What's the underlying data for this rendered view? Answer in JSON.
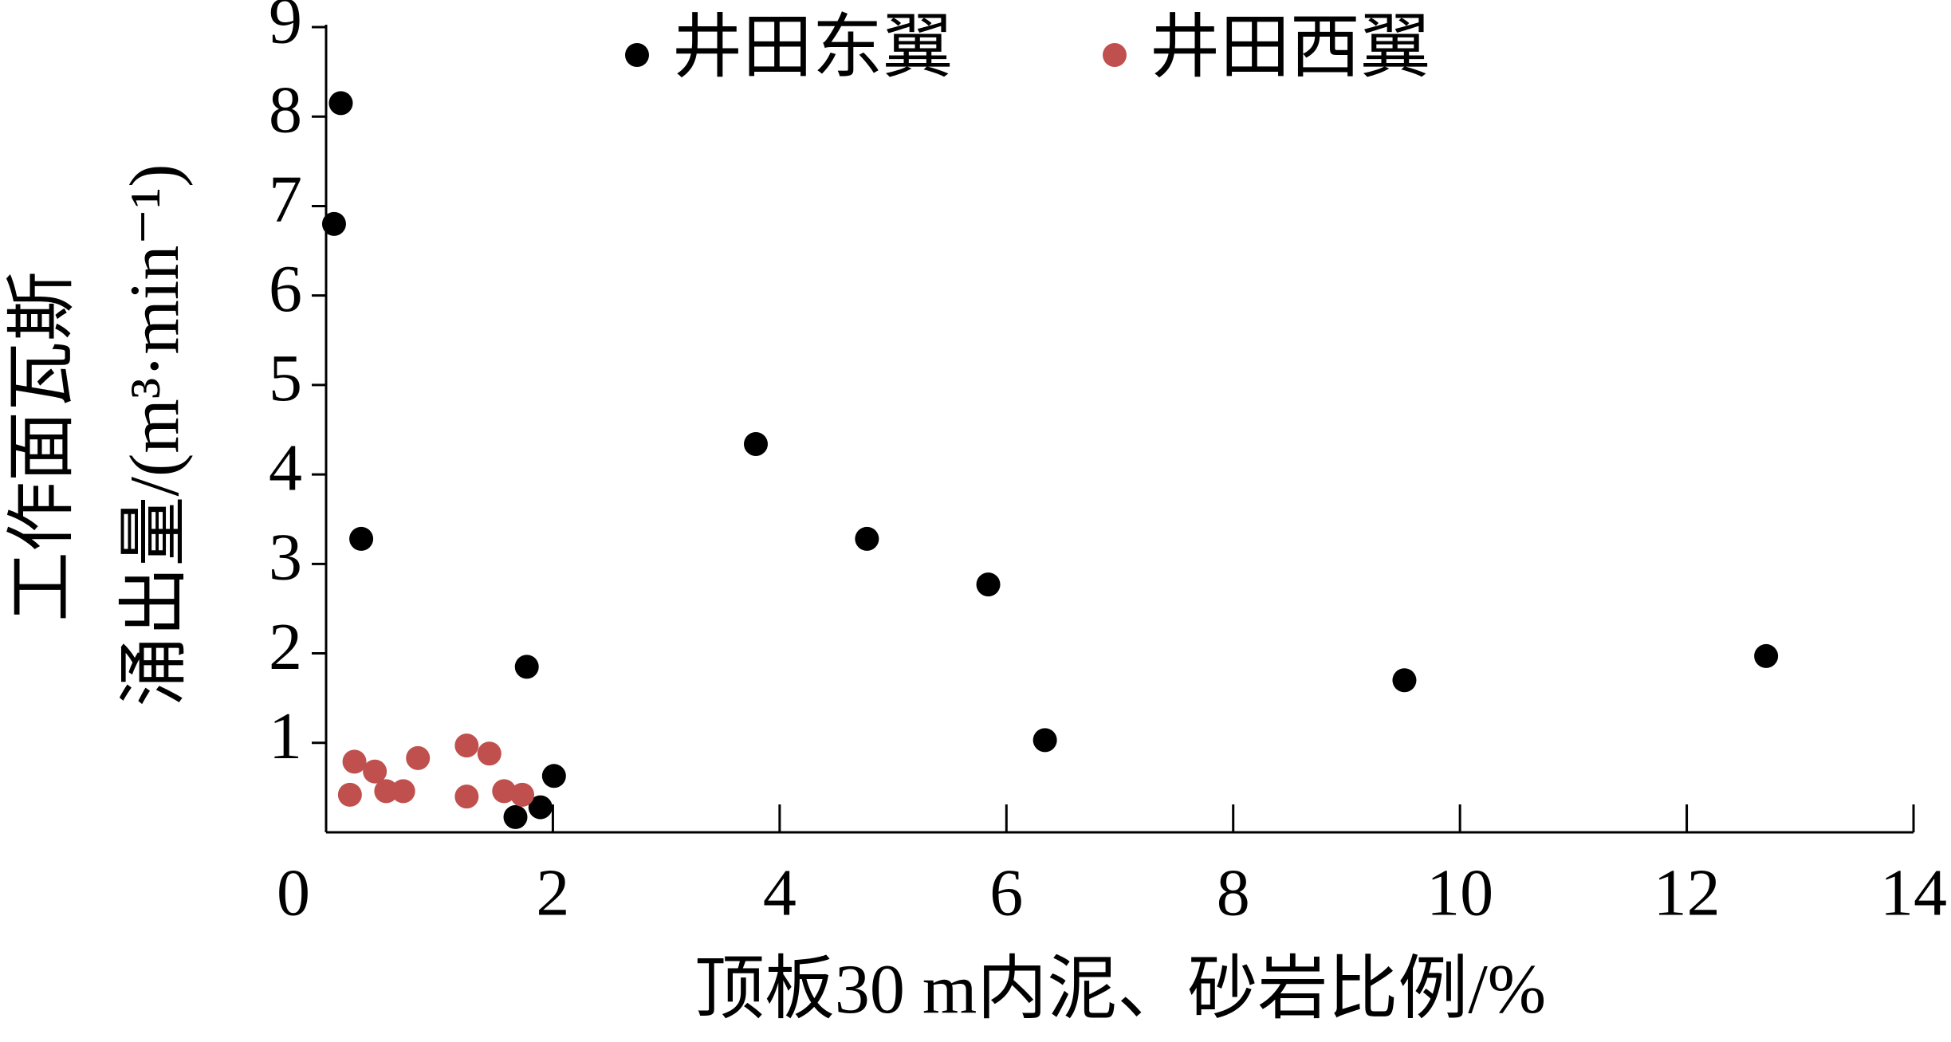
{
  "chart_data": {
    "type": "scatter",
    "x_label": "顶板30 m内泥、砂岩比例/%",
    "y_label": [
      "工作面瓦斯",
      "涌出量/(m³·min⁻¹)"
    ],
    "xlim": [
      0,
      14
    ],
    "xticks": [
      0,
      2,
      4,
      6,
      8,
      10,
      12,
      14
    ],
    "ylim": [
      0,
      9
    ],
    "yticks": [
      1,
      2,
      3,
      4,
      5,
      6,
      7,
      8,
      9
    ],
    "legend": "top",
    "series": [
      {
        "name": "井田东翼",
        "color": "#000000",
        "x": [
          0.13,
          0.07,
          0.31,
          1.77,
          2.01,
          1.89,
          1.67,
          3.79,
          4.77,
          5.84,
          6.34,
          9.51,
          12.7
        ],
        "values": [
          8.15,
          6.8,
          3.28,
          1.85,
          0.63,
          0.28,
          0.17,
          4.34,
          3.28,
          2.77,
          1.03,
          1.7,
          1.97
        ]
      },
      {
        "name": "井田西翼",
        "color": "#c0504d",
        "x": [
          0.25,
          0.21,
          0.43,
          0.53,
          0.68,
          0.81,
          1.24,
          1.44,
          1.24,
          1.57,
          1.73
        ],
        "values": [
          0.79,
          0.42,
          0.68,
          0.46,
          0.46,
          0.83,
          0.97,
          0.88,
          0.4,
          0.46,
          0.42
        ]
      }
    ]
  }
}
